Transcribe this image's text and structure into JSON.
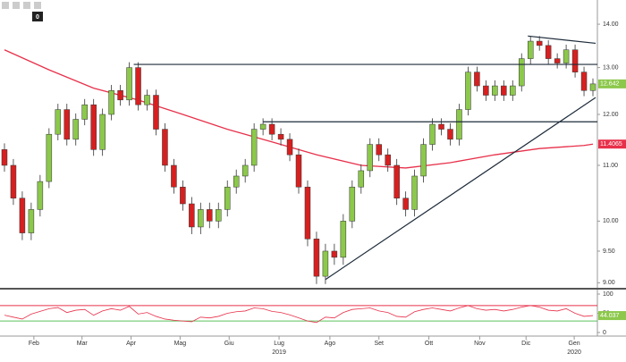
{
  "chart_data": {
    "type": "candlestick",
    "xlim": [
      -0.5,
      66.5
    ],
    "xticks": [
      {
        "value": 3.3,
        "label": "Feb"
      },
      {
        "value": 8.7,
        "label": "Mar"
      },
      {
        "value": 14.2,
        "label": "Apr"
      },
      {
        "value": 19.7,
        "label": "Mag"
      },
      {
        "value": 25.2,
        "label": "Giu"
      },
      {
        "value": 30.8,
        "label": "Lug"
      },
      {
        "value": 36.5,
        "label": "Ago"
      },
      {
        "value": 42,
        "label": "Set"
      },
      {
        "value": 47.6,
        "label": "Ott"
      },
      {
        "value": 53.3,
        "label": "Nov"
      },
      {
        "value": 58.5,
        "label": "Dic"
      },
      {
        "value": 63.9,
        "label": "Gen"
      }
    ],
    "year_ticks": [
      {
        "value": 30.8,
        "label": "2019"
      },
      {
        "value": 63.9,
        "label": "2020"
      }
    ],
    "ylim": [
      8.95,
      14.48
    ],
    "log_scale": true,
    "yticks": [
      {
        "value": 14,
        "label": "14.00"
      },
      {
        "value": 13,
        "label": "13.00"
      },
      {
        "value": 12,
        "label": "12.00"
      },
      {
        "value": 11,
        "label": "11.00"
      },
      {
        "value": 10,
        "label": "10.00"
      },
      {
        "value": 9.5,
        "label": "9.50"
      },
      {
        "value": 9,
        "label": "9.00"
      }
    ],
    "open": [
      11.3,
      11.0,
      10.4,
      9.8,
      10.2,
      10.7,
      11.6,
      12.1,
      11.5,
      11.9,
      12.2,
      11.3,
      12.0,
      12.5,
      12.3,
      13.0,
      12.2,
      12.4,
      11.7,
      11.0,
      10.6,
      10.3,
      9.9,
      10.2,
      10.0,
      10.2,
      10.6,
      10.8,
      11.0,
      11.7,
      11.8,
      11.6,
      11.5,
      11.2,
      10.6,
      9.7,
      9.1,
      9.5,
      9.4,
      10.0,
      10.6,
      10.9,
      11.4,
      11.2,
      11.0,
      10.4,
      10.2,
      10.8,
      11.4,
      11.8,
      11.7,
      11.5,
      12.1,
      12.9,
      12.6,
      12.4,
      12.6,
      12.4,
      12.6,
      13.2,
      13.6,
      13.5,
      13.2,
      13.1,
      13.4,
      12.9,
      12.5
    ],
    "high": [
      11.42,
      11.12,
      10.52,
      10.32,
      10.82,
      11.72,
      12.22,
      12.22,
      12.02,
      12.32,
      12.32,
      12.12,
      12.62,
      12.62,
      13.12,
      13.12,
      12.52,
      12.52,
      11.82,
      11.12,
      10.72,
      10.42,
      10.32,
      10.32,
      10.32,
      10.72,
      10.92,
      11.12,
      11.82,
      11.92,
      11.92,
      11.72,
      11.62,
      11.32,
      10.72,
      9.82,
      9.62,
      9.62,
      10.12,
      10.72,
      11.02,
      11.52,
      11.52,
      11.32,
      11.12,
      10.52,
      10.92,
      11.52,
      11.92,
      11.92,
      11.82,
      12.22,
      13.02,
      13.02,
      12.72,
      12.72,
      12.72,
      12.72,
      13.32,
      13.72,
      13.72,
      13.62,
      13.32,
      13.52,
      13.52,
      13.02,
      12.76
    ],
    "low": [
      10.88,
      10.28,
      9.68,
      9.68,
      10.08,
      10.58,
      11.48,
      11.38,
      11.38,
      11.78,
      11.18,
      11.18,
      11.88,
      12.18,
      12.18,
      12.08,
      12.08,
      11.58,
      10.88,
      10.48,
      10.18,
      9.78,
      9.78,
      9.88,
      9.88,
      10.08,
      10.48,
      10.68,
      10.88,
      11.58,
      11.48,
      11.38,
      11.08,
      10.48,
      9.58,
      8.98,
      8.98,
      9.28,
      9.28,
      9.88,
      10.48,
      10.78,
      11.08,
      10.88,
      10.28,
      10.08,
      10.08,
      10.68,
      11.28,
      11.58,
      11.38,
      11.38,
      11.98,
      12.48,
      12.28,
      12.28,
      12.28,
      12.28,
      12.48,
      13.08,
      13.38,
      13.08,
      12.98,
      12.98,
      12.78,
      12.38,
      12.38
    ],
    "close": [
      11.0,
      10.4,
      9.8,
      10.2,
      10.7,
      11.6,
      12.1,
      11.5,
      11.9,
      12.2,
      11.3,
      12.0,
      12.5,
      12.3,
      13.0,
      12.2,
      12.4,
      11.7,
      11.0,
      10.6,
      10.3,
      9.9,
      10.2,
      10.0,
      10.2,
      10.6,
      10.8,
      11.0,
      11.7,
      11.8,
      11.6,
      11.5,
      11.2,
      10.6,
      9.7,
      9.1,
      9.5,
      9.4,
      10.0,
      10.6,
      10.9,
      11.4,
      11.2,
      11.0,
      10.4,
      10.2,
      10.8,
      11.4,
      11.8,
      11.7,
      11.5,
      12.1,
      12.9,
      12.6,
      12.4,
      12.6,
      12.4,
      12.6,
      13.2,
      13.6,
      13.5,
      13.2,
      13.1,
      13.4,
      12.9,
      12.5,
      12.642
    ],
    "up_color": "#8cc84b",
    "down_color": "#d62020",
    "ma": {
      "color": "#e8304a",
      "x": [
        0,
        5,
        10,
        15,
        20,
        25,
        30,
        35,
        40,
        45,
        50,
        55,
        60,
        65,
        66
      ],
      "values": [
        13.4,
        12.95,
        12.55,
        12.3,
        12.0,
        11.7,
        11.45,
        11.2,
        11.0,
        10.95,
        11.05,
        11.2,
        11.32,
        11.38,
        11.4065
      ]
    },
    "trendline_color": "#1d2b3a",
    "trendlines": [
      {
        "x": [
          14.5,
          66.5
        ],
        "y": [
          13.07,
          13.07
        ]
      },
      {
        "x": [
          29,
          66.5
        ],
        "y": [
          11.85,
          11.85
        ]
      },
      {
        "x": [
          36,
          66.3
        ],
        "y": [
          9.05,
          12.35
        ]
      },
      {
        "x": [
          58.7,
          66.3
        ],
        "y": [
          13.72,
          13.55
        ]
      }
    ],
    "rsi": {
      "ylim": [
        0,
        100
      ],
      "yticks": [
        100,
        50,
        0
      ],
      "color": "#e8304a",
      "values": [
        45,
        40,
        35,
        48,
        55,
        62,
        65,
        52,
        58,
        60,
        45,
        56,
        62,
        58,
        68,
        48,
        52,
        42,
        35,
        32,
        30,
        28,
        40,
        38,
        42,
        50,
        54,
        56,
        64,
        62,
        55,
        52,
        46,
        38,
        30,
        26,
        40,
        38,
        52,
        60,
        62,
        64,
        56,
        52,
        42,
        40,
        54,
        60,
        64,
        60,
        56,
        64,
        70,
        62,
        58,
        60,
        56,
        60,
        66,
        70,
        66,
        58,
        56,
        62,
        50,
        42,
        44.037
      ],
      "levels": [
        {
          "value": 70,
          "color": "#e8304a"
        },
        {
          "value": 30,
          "color": "#5cc05c"
        }
      ]
    }
  },
  "toolbar": {
    "badge": "0"
  }
}
